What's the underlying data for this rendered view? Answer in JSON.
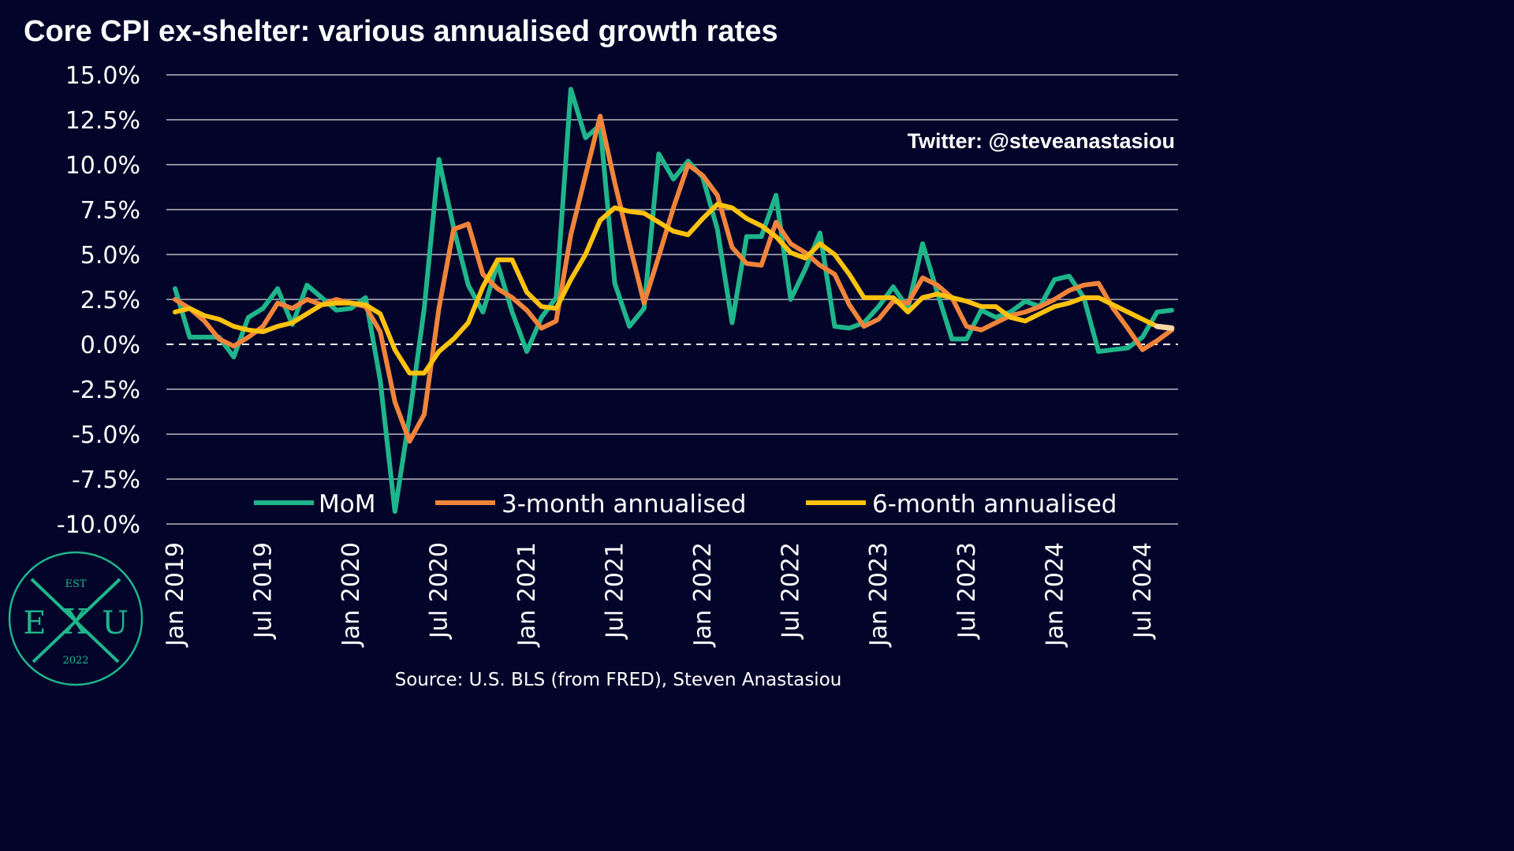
{
  "chart_data": {
    "type": "line",
    "title": "Core CPI ex-shelter: various annualised growth rates",
    "xlabel": "",
    "ylabel": "",
    "ylim": [
      -10,
      15
    ],
    "yticks": [
      "15.0%",
      "12.5%",
      "10.0%",
      "7.5%",
      "5.0%",
      "2.5%",
      "0.0%",
      "-2.5%",
      "-5.0%",
      "-7.5%",
      "-10.0%"
    ],
    "ytick_values": [
      15,
      12.5,
      10,
      7.5,
      5,
      2.5,
      0,
      -2.5,
      -5,
      -7.5,
      -10
    ],
    "xticks": [
      {
        "label": "Jan 2019",
        "index": 0
      },
      {
        "label": "Jul 2019",
        "index": 6
      },
      {
        "label": "Jan 2020",
        "index": 12
      },
      {
        "label": "Jul 2020",
        "index": 18
      },
      {
        "label": "Jan 2021",
        "index": 24
      },
      {
        "label": "Jul 2021",
        "index": 30
      },
      {
        "label": "Jan 2022",
        "index": 36
      },
      {
        "label": "Jul 2022",
        "index": 42
      },
      {
        "label": "Jan 2023",
        "index": 48
      },
      {
        "label": "Jul 2023",
        "index": 54
      },
      {
        "label": "Jan 2024",
        "index": 60
      },
      {
        "label": "Jul 2024",
        "index": 66
      }
    ],
    "x_start": "Jan 2019",
    "x_end": "Sep 2024",
    "grid": true,
    "zero_line": "dashed",
    "legend_position": "bottom",
    "series": [
      {
        "name": "MoM",
        "color": "#1fb58b",
        "values": [
          3.1,
          0.4,
          0.4,
          0.4,
          -0.7,
          1.5,
          2.0,
          3.1,
          1.1,
          3.3,
          2.6,
          1.9,
          2.0,
          2.6,
          -2.0,
          -9.3,
          -4.0,
          2.0,
          10.3,
          6.5,
          3.3,
          1.8,
          4.5,
          1.8,
          -0.4,
          1.5,
          2.6,
          14.2,
          11.5,
          12.2,
          3.4,
          1.0,
          2.0,
          10.6,
          9.2,
          10.2,
          9.3,
          6.4,
          1.2,
          6.0,
          6.0,
          8.3,
          2.5,
          4.2,
          6.2,
          1.0,
          0.9,
          1.2,
          2.1,
          3.2,
          2.0,
          5.6,
          2.9,
          0.3,
          0.3,
          1.9,
          1.5,
          1.8,
          2.4,
          2.1,
          3.6,
          3.8,
          2.6,
          -0.4,
          -0.3,
          -0.2,
          0.4,
          1.8,
          1.9
        ]
      },
      {
        "name": "3-month annualised",
        "color": "#f0843a",
        "values": [
          2.5,
          2.0,
          1.3,
          0.3,
          -0.1,
          0.4,
          1.0,
          2.3,
          2.0,
          2.5,
          2.2,
          2.5,
          2.3,
          2.1,
          0.7,
          -3.2,
          -5.4,
          -3.9,
          2.0,
          6.4,
          6.7,
          3.9,
          3.1,
          2.6,
          1.9,
          0.9,
          1.3,
          6.1,
          9.4,
          12.7,
          9.0,
          5.6,
          2.3,
          4.9,
          7.6,
          10.0,
          9.4,
          8.3,
          5.4,
          4.5,
          4.4,
          6.8,
          5.6,
          5.1,
          4.4,
          3.9,
          2.2,
          1.0,
          1.4,
          2.4,
          2.3,
          3.7,
          3.3,
          2.6,
          1.0,
          0.8,
          1.2,
          1.6,
          1.8,
          2.1,
          2.5,
          3.0,
          3.3,
          3.4,
          2.0,
          0.9,
          -0.3,
          0.2,
          0.8
        ]
      },
      {
        "name": "6-month annualised",
        "color": "#ffc20e",
        "values": [
          1.8,
          2.0,
          1.6,
          1.4,
          1.0,
          0.8,
          0.7,
          1.0,
          1.2,
          1.7,
          2.2,
          2.3,
          2.3,
          2.2,
          1.7,
          -0.3,
          -1.6,
          -1.6,
          -0.4,
          0.3,
          1.2,
          3.2,
          4.7,
          4.7,
          2.9,
          2.1,
          2.0,
          3.6,
          5.0,
          6.9,
          7.6,
          7.4,
          7.3,
          6.8,
          6.3,
          6.1,
          7.0,
          7.8,
          7.6,
          7.0,
          6.6,
          6.0,
          5.1,
          4.8,
          5.6,
          5.0,
          3.9,
          2.6,
          2.6,
          2.6,
          1.8,
          2.6,
          2.8,
          2.6,
          2.4,
          2.1,
          2.1,
          1.5,
          1.3,
          1.7,
          2.1,
          2.3,
          2.6,
          2.6,
          2.2,
          1.8,
          1.4,
          1.0,
          0.9
        ]
      }
    ]
  },
  "credit": "Twitter: @steveanastasiou",
  "source": "Source: U.S. BLS (from FRED), Steven Anastasiou",
  "logo": {
    "top": "EST",
    "left": "E",
    "center": "X",
    "right": "U",
    "bottom": "2022"
  }
}
